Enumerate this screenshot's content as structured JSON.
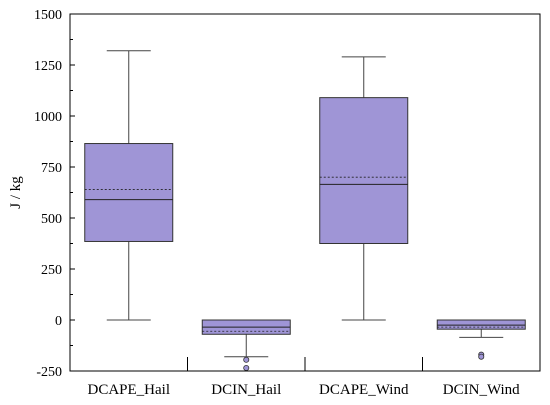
{
  "chart_data": {
    "type": "box",
    "ylabel": "J / kg",
    "ylim": [
      -250,
      1500
    ],
    "yticks": [
      -250,
      0,
      250,
      500,
      750,
      1000,
      1250,
      1500
    ],
    "ytick_labels": [
      "-250",
      "0",
      "250",
      "500",
      "750",
      "1000",
      "1250",
      "1500"
    ],
    "categories": [
      "DCAPE_Hail",
      "DCIN_Hail",
      "DCAPE_Wind",
      "DCIN_Wind"
    ],
    "box_color": "#9f95d6",
    "series": [
      {
        "category": "DCAPE_Hail",
        "whisker_low": 0,
        "q1": 385,
        "median": 590,
        "mean": 640,
        "q3": 865,
        "whisker_high": 1320,
        "outliers": []
      },
      {
        "category": "DCIN_Hail",
        "whisker_low": -180,
        "q1": -70,
        "median": -35,
        "mean": -55,
        "q3": 0,
        "whisker_high": 0,
        "outliers": [
          -195,
          -235
        ]
      },
      {
        "category": "DCAPE_Wind",
        "whisker_low": 0,
        "q1": 375,
        "median": 665,
        "mean": 700,
        "q3": 1090,
        "whisker_high": 1290,
        "outliers": []
      },
      {
        "category": "DCIN_Wind",
        "whisker_low": -85,
        "q1": -45,
        "median": -25,
        "mean": -35,
        "q3": 0,
        "whisker_high": 0,
        "outliers": [
          -170,
          -180
        ]
      }
    ]
  }
}
